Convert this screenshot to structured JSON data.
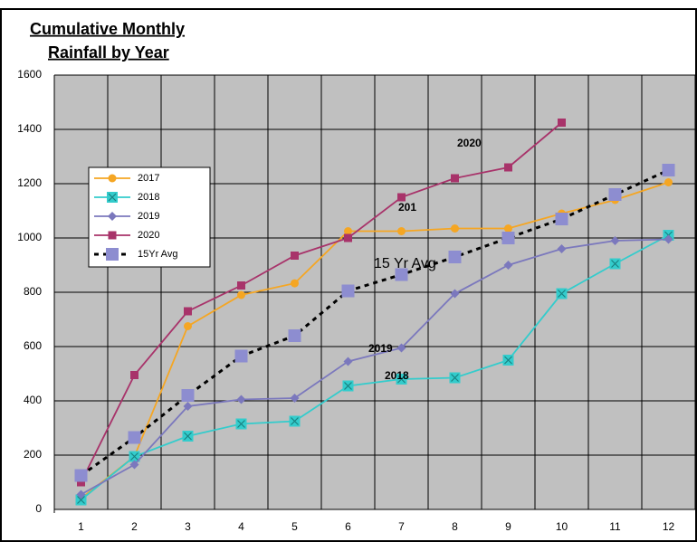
{
  "chart_data": {
    "type": "line",
    "title": [
      "Cumulative Monthly",
      "Rainfall by Year"
    ],
    "categories": [
      "1",
      "2",
      "3",
      "4",
      "5",
      "6",
      "7",
      "8",
      "9",
      "10",
      "11",
      "12"
    ],
    "series": [
      {
        "name": "2017",
        "color": "#f5a623",
        "marker": "circle",
        "values": [
          40,
          195,
          675,
          790,
          833,
          1025,
          1025,
          1035,
          1035,
          1090,
          1140,
          1205
        ]
      },
      {
        "name": "2018",
        "color": "#33cccc",
        "marker": "xsquare",
        "values": [
          35,
          195,
          270,
          315,
          325,
          455,
          480,
          485,
          550,
          795,
          905,
          1010
        ]
      },
      {
        "name": "2019",
        "color": "#7b78bd",
        "marker": "diamond",
        "values": [
          55,
          165,
          380,
          405,
          410,
          545,
          595,
          795,
          900,
          960,
          990,
          995
        ]
      },
      {
        "name": "2020",
        "color": "#a8336a",
        "marker": "square",
        "values": [
          100,
          495,
          730,
          825,
          935,
          1000,
          1150,
          1220,
          1260,
          1425,
          null,
          null
        ]
      },
      {
        "name": "15Yr Avg",
        "color": "#8d8dd0",
        "line_color": "#000000",
        "dashed": true,
        "marker": "bigsquare",
        "values": [
          125,
          265,
          420,
          565,
          640,
          805,
          865,
          930,
          1000,
          1070,
          1160,
          1250
        ]
      }
    ],
    "ylim": [
      0,
      1600
    ],
    "yticks": [
      0,
      200,
      400,
      600,
      800,
      1000,
      1200,
      1400,
      1600
    ],
    "grid": true,
    "legend": "left",
    "annotations": [
      "2020",
      "201",
      "15 Yr Avg",
      "2019",
      "2018"
    ]
  }
}
